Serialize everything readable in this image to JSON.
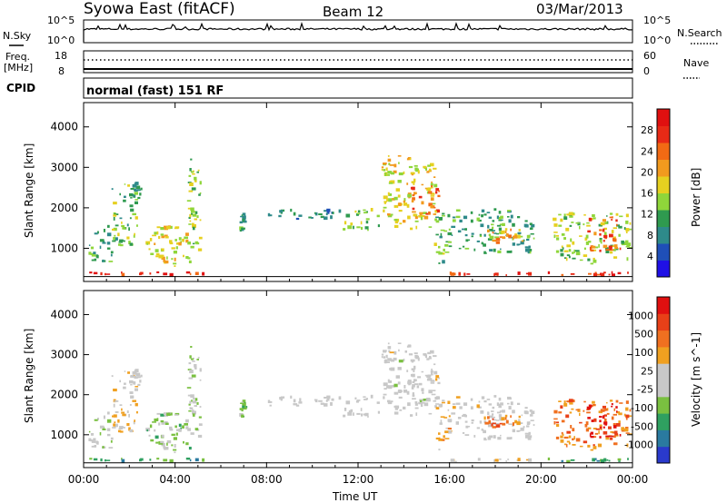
{
  "header": {
    "station": "Syowa East (fitACF)",
    "beam": "Beam 12",
    "date": "03/Mar/2013"
  },
  "noise_panel": {
    "left_label": "N.Sky",
    "left_ticks": [
      "10^5",
      "10^0"
    ],
    "right_ticks": [
      "10^5",
      "10^0"
    ],
    "right_label": "N.Search"
  },
  "freq_panel": {
    "left_label_1": "Freq.",
    "left_label_2": "[MHz]",
    "left_ticks": [
      "18",
      "8"
    ],
    "right_ticks": [
      "60",
      "0"
    ],
    "right_label": "Nave"
  },
  "cpid_panel": {
    "label": "CPID",
    "text": "normal (fast) 151 RF"
  },
  "colors": {
    "power_scale": [
      "#1f10e6",
      "#1f4fb8",
      "#2e8a8a",
      "#2f9a4f",
      "#8fd63a",
      "#e6d020",
      "#f29a1e",
      "#f26a14",
      "#e82a16",
      "#e01010"
    ],
    "velocity_scale": [
      "#2a3acc",
      "#2a7aa0",
      "#2fa060",
      "#7ac040",
      "#c8c8c8",
      "#c8c8c8",
      "#f0a020",
      "#f07020",
      "#e84018",
      "#e01010"
    ]
  },
  "chart_data": [
    {
      "type": "heatmap",
      "name": "power",
      "ylabel": "Slant Range [km]",
      "xlabel": "",
      "x_ticks": [
        "00:00",
        "04:00",
        "08:00",
        "12:00",
        "16:00",
        "20:00",
        "00:00"
      ],
      "y_ticks": [
        "1000",
        "2000",
        "3000",
        "4000"
      ],
      "xlim_hours": [
        0,
        24
      ],
      "ylim_km": [
        180,
        4600
      ],
      "colorbar": {
        "label": "Power [dB]",
        "ticks": [
          "28",
          "24",
          "20",
          "16",
          "12",
          "8",
          "4"
        ],
        "range": [
          0,
          30
        ]
      },
      "regions": [
        {
          "t": [
            0.0,
            5.3
          ],
          "r": [
            300,
            430
          ],
          "value": 26
        },
        {
          "t": [
            0.2,
            1.3
          ],
          "r": [
            650,
            1600
          ],
          "value": 10
        },
        {
          "t": [
            1.2,
            2.4
          ],
          "r": [
            1000,
            2600
          ],
          "value": 12
        },
        {
          "t": [
            2.0,
            2.6
          ],
          "r": [
            2200,
            2700
          ],
          "value": 10
        },
        {
          "t": [
            2.7,
            4.8
          ],
          "r": [
            500,
            1600
          ],
          "value": 16
        },
        {
          "t": [
            4.5,
            5.2
          ],
          "r": [
            900,
            3300
          ],
          "value": 14
        },
        {
          "t": [
            6.8,
            7.2
          ],
          "r": [
            1400,
            1900
          ],
          "value": 10
        },
        {
          "t": [
            7.9,
            11.3
          ],
          "r": [
            1700,
            2000
          ],
          "value": 8
        },
        {
          "t": [
            11.3,
            13.0
          ],
          "r": [
            1400,
            2000
          ],
          "value": 12
        },
        {
          "t": [
            13.0,
            15.5
          ],
          "r": [
            1450,
            3300
          ],
          "value": 16
        },
        {
          "t": [
            14.3,
            15.6
          ],
          "r": [
            1700,
            2600
          ],
          "value": 22
        },
        {
          "t": [
            15.3,
            16.3
          ],
          "r": [
            600,
            1900
          ],
          "value": 12
        },
        {
          "t": [
            16.2,
            19.8
          ],
          "r": [
            850,
            2000
          ],
          "value": 10
        },
        {
          "t": [
            16.0,
            19.8
          ],
          "r": [
            300,
            430
          ],
          "value": 25
        },
        {
          "t": [
            17.5,
            19.5
          ],
          "r": [
            1100,
            1500
          ],
          "value": 20
        },
        {
          "t": [
            20.0,
            24.0
          ],
          "r": [
            300,
            450
          ],
          "value": 26
        },
        {
          "t": [
            20.5,
            24.0
          ],
          "r": [
            600,
            1900
          ],
          "value": 14
        },
        {
          "t": [
            22.0,
            23.5
          ],
          "r": [
            900,
            1800
          ],
          "value": 22
        }
      ]
    },
    {
      "type": "heatmap",
      "name": "velocity",
      "ylabel": "Slant Range [km]",
      "xlabel": "Time UT",
      "x_ticks": [
        "00:00",
        "04:00",
        "08:00",
        "12:00",
        "16:00",
        "20:00",
        "00:00"
      ],
      "y_ticks": [
        "1000",
        "2000",
        "3000",
        "4000"
      ],
      "xlim_hours": [
        0,
        24
      ],
      "ylim_km": [
        180,
        4600
      ],
      "colorbar": {
        "label": "Velocity [m s^-1]",
        "ticks": [
          "1000",
          "500",
          "100",
          "25",
          "-25",
          "-100",
          "-500",
          "-1000"
        ],
        "range": [
          -1200,
          1200
        ]
      },
      "regions": [
        {
          "t": [
            0.0,
            5.3
          ],
          "r": [
            300,
            430
          ],
          "value": -600
        },
        {
          "t": [
            0.2,
            1.3
          ],
          "r": [
            650,
            1600
          ],
          "value": -150
        },
        {
          "t": [
            1.2,
            2.4
          ],
          "r": [
            1000,
            2600
          ],
          "value": 200
        },
        {
          "t": [
            2.0,
            2.6
          ],
          "r": [
            2200,
            2700
          ],
          "value": 0
        },
        {
          "t": [
            2.7,
            4.8
          ],
          "r": [
            500,
            1600
          ],
          "value": -300
        },
        {
          "t": [
            4.5,
            5.2
          ],
          "r": [
            900,
            3300
          ],
          "value": -200
        },
        {
          "t": [
            6.8,
            7.2
          ],
          "r": [
            1400,
            1900
          ],
          "value": -300
        },
        {
          "t": [
            7.9,
            11.3
          ],
          "r": [
            1700,
            2000
          ],
          "value": 0
        },
        {
          "t": [
            11.3,
            13.0
          ],
          "r": [
            1400,
            2000
          ],
          "value": 0
        },
        {
          "t": [
            13.0,
            15.5
          ],
          "r": [
            1450,
            3300
          ],
          "value": 0
        },
        {
          "t": [
            14.3,
            15.6
          ],
          "r": [
            1700,
            2600
          ],
          "value": 0
        },
        {
          "t": [
            15.3,
            16.3
          ],
          "r": [
            600,
            1900
          ],
          "value": 300
        },
        {
          "t": [
            16.2,
            19.8
          ],
          "r": [
            850,
            2000
          ],
          "value": 0
        },
        {
          "t": [
            16.0,
            19.8
          ],
          "r": [
            300,
            430
          ],
          "value": 150
        },
        {
          "t": [
            17.5,
            19.5
          ],
          "r": [
            1100,
            1500
          ],
          "value": 600
        },
        {
          "t": [
            20.0,
            24.0
          ],
          "r": [
            300,
            450
          ],
          "value": -600
        },
        {
          "t": [
            20.5,
            24.0
          ],
          "r": [
            600,
            1900
          ],
          "value": 500
        },
        {
          "t": [
            22.0,
            23.5
          ],
          "r": [
            900,
            1800
          ],
          "value": 1000
        }
      ]
    }
  ]
}
